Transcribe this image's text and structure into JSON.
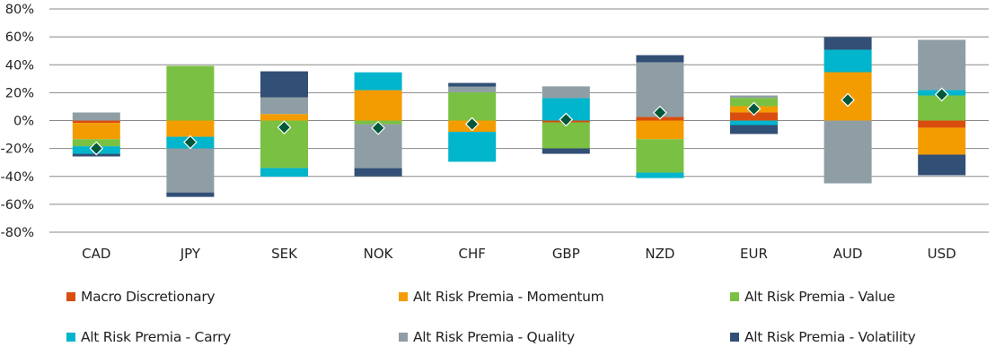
{
  "chart_data": {
    "type": "bar",
    "stacked": true,
    "title": "",
    "xlabel": "",
    "ylabel": "",
    "ylim": [
      -80,
      80
    ],
    "yticks": [
      80,
      60,
      40,
      20,
      0,
      -20,
      -40,
      -60,
      -80
    ],
    "ytick_format": "percent",
    "grid": true,
    "legend_position": "bottom",
    "categories": [
      "CAD",
      "JPY",
      "SEK",
      "NOK",
      "CHF",
      "GBP",
      "NZD",
      "EUR",
      "AUD",
      "USD"
    ],
    "series": [
      {
        "name": "Macro Discretionary",
        "color": "#D94E0E",
        "values": [
          -1.7,
          0,
          0,
          0,
          0,
          -1.3,
          2.6,
          5.8,
          0,
          -5.1
        ]
      },
      {
        "name": "Alt Risk Premia - Momentum",
        "color": "#F39C00",
        "values": [
          -11.6,
          -11.6,
          4.7,
          21.8,
          -8.1,
          0,
          -13.3,
          4.5,
          34.7,
          -19.3
        ]
      },
      {
        "name": "Alt Risk Premia - Value",
        "color": "#7AC143",
        "values": [
          -5.1,
          39.2,
          -34.0,
          -2.6,
          20.3,
          -18.6,
          -24.0,
          6.0,
          0,
          18.0
        ]
      },
      {
        "name": "Alt Risk Premia - Carry",
        "color": "#00B5CC",
        "values": [
          -5.4,
          -8.4,
          -6.2,
          12.8,
          -21.4,
          16.1,
          -3.9,
          -3.2,
          16.1,
          3.9
        ]
      },
      {
        "name": "Alt Risk Premia - Quality",
        "color": "#8F9EA5",
        "values": [
          5.8,
          -31.5,
          12.0,
          -31.5,
          4.1,
          8.4,
          39.2,
          1.7,
          -45.0,
          36.0
        ]
      },
      {
        "name": "Alt Risk Premia - Volatility",
        "color": "#324F75",
        "values": [
          -1.9,
          -3.2,
          18.6,
          -5.8,
          2.6,
          -3.9,
          5.1,
          -6.4,
          9.0,
          -14.8
        ]
      }
    ],
    "total_marker": {
      "shape": "diamond",
      "color": "#00583A"
    }
  }
}
